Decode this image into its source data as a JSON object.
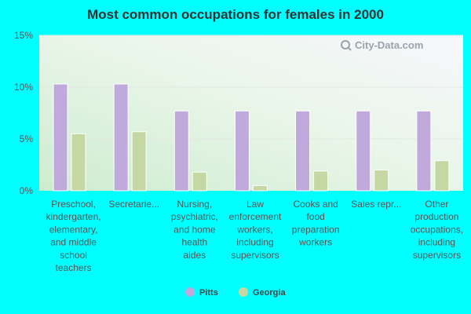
{
  "chart_data": {
    "type": "bar",
    "title": "Most common occupations for females in 2000",
    "categories": [
      "Preschool, kindergarten, elementary, and middle school teachers",
      "Secretarie...",
      "Nursing, psychiatric, and home health aides",
      "Law enforcement workers, including supervisors",
      "Cooks and food preparation workers",
      "Sales repr...",
      "Other production occupations, including supervisors"
    ],
    "category_lines": [
      [
        "Preschool,",
        "kindergarten,",
        "elementary,",
        "and middle",
        "school",
        "teachers"
      ],
      [
        "Secretarie..."
      ],
      [
        "Nursing,",
        "psychiatric,",
        "and home",
        "health",
        "aides"
      ],
      [
        "Law",
        "enforcement",
        "workers,",
        "including",
        "supervisors"
      ],
      [
        "Cooks and",
        "food",
        "preparation",
        "workers"
      ],
      [
        "Sales repr..."
      ],
      [
        "Other",
        "production",
        "occupations,",
        "including",
        "supervisors"
      ]
    ],
    "series": [
      {
        "name": "Pitts",
        "color": "#c0a9db",
        "values": [
          10.3,
          10.3,
          7.7,
          7.7,
          7.7,
          7.7,
          7.7
        ]
      },
      {
        "name": "Georgia",
        "color": "#c5d8a4",
        "values": [
          5.5,
          5.7,
          1.8,
          0.5,
          1.9,
          2.0,
          2.9
        ]
      }
    ],
    "ylim": [
      0,
      15
    ],
    "yticks": [
      0,
      5,
      10,
      15
    ],
    "ytick_labels": [
      "0%",
      "5%",
      "10%",
      "15%"
    ],
    "grid": true,
    "legend_position": "bottom-center"
  },
  "watermark": {
    "text": "City-Data.com",
    "icon": "magnifier-icon"
  }
}
